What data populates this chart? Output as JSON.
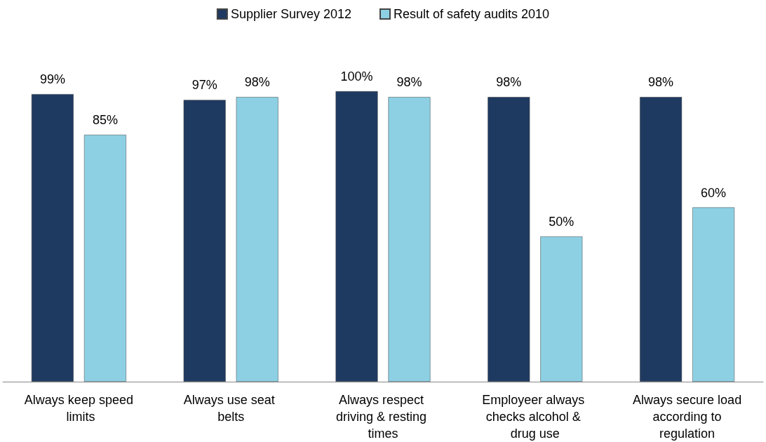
{
  "chart_data": {
    "type": "bar",
    "categories": [
      "Always keep speed limits",
      "Always use seat belts",
      "Always respect driving & resting times",
      "Employeer always checks alcohol & drug use",
      "Always secure load according to regulation"
    ],
    "series": [
      {
        "name": "Supplier Survey 2012",
        "color": "#1f3a60",
        "values": [
          99,
          97,
          100,
          98,
          98
        ],
        "value_labels": [
          "99%",
          "97%",
          "100%",
          "98%",
          "98%"
        ]
      },
      {
        "name": "Result of safety audits 2010",
        "color": "#8dd0e4",
        "values": [
          85,
          98,
          98,
          50,
          60
        ],
        "value_labels": [
          "85%",
          "98%",
          "98%",
          "50%",
          "60%"
        ]
      }
    ],
    "legend": "top",
    "grid": false
  }
}
